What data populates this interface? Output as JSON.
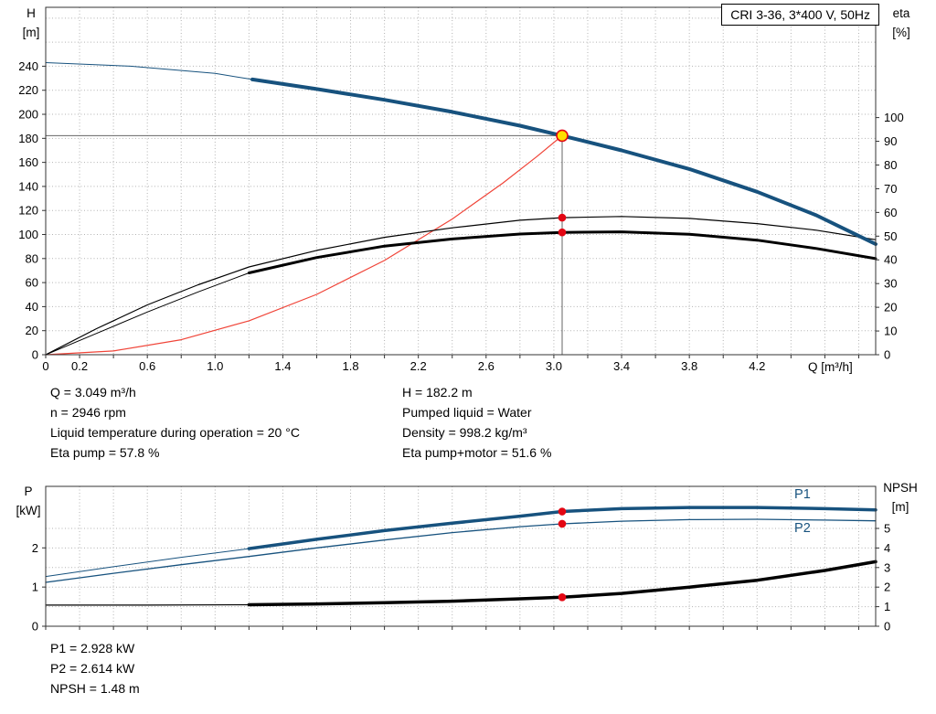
{
  "title_box": "CRI 3-36, 3*400 V, 50Hz",
  "axes_captions": {
    "h_top": "H",
    "h_unit": "[m]",
    "eta_top": "eta",
    "eta_unit": "[%]",
    "q_axis": "Q [m³/h]",
    "p_top": "P",
    "p_unit": "[kW]",
    "npsh_top": "NPSH",
    "npsh_unit": "[m]"
  },
  "info": {
    "q": "Q = 3.049 m³/h",
    "n": "n = 2946 rpm",
    "temperature": "Liquid temperature during operation = 20 °C",
    "eta_pump": "Eta pump = 57.8 %",
    "h": "H = 182.2 m",
    "pumped_liquid": "Pumped liquid = Water",
    "density": "Density = 998.2 kg/m³",
    "eta_pump_motor": "Eta pump+motor = 51.6 %"
  },
  "results": {
    "p1": "P1 = 2.928 kW",
    "p2": "P2 = 2.614 kW",
    "npsh": "NPSH = 1.48 m"
  },
  "colors": {
    "blue": "#17527e",
    "black": "#000000",
    "red_curve": "#f04438",
    "red_dot": "#e30613",
    "duty_fill": "#ffe000",
    "duty_stroke": "#e30613",
    "grid": "#b3b3b3",
    "crosshair": "#666666",
    "axis": "#333333"
  },
  "chart_data": [
    {
      "type": "line",
      "title": "CRI 3-36, 3*400 V, 50Hz",
      "xlabel": "Q [m³/h]",
      "ylabel_left": "H [m]",
      "ylabel_right": "eta [%]",
      "xlim": [
        0,
        4.9
      ],
      "ylim_left": [
        0,
        289
      ],
      "ylim_right": [
        0,
        146.5
      ],
      "xticks": {
        "values": [
          0,
          0.2,
          0.6,
          1.0,
          1.4,
          1.8,
          2.2,
          2.6,
          3.0,
          3.4,
          3.8,
          4.2
        ],
        "labels": [
          "0",
          "0.2",
          "0.6",
          "1.0",
          "1.4",
          "1.8",
          "2.2",
          "2.6",
          "3.0",
          "3.4",
          "3.8",
          "4.2"
        ]
      },
      "xtick_marks": {
        "start": 0,
        "end": 4.8,
        "step": 0.2
      },
      "yticks_left": [
        0,
        20,
        40,
        60,
        80,
        100,
        120,
        140,
        160,
        180,
        200,
        220,
        240
      ],
      "yticks_right": [
        0,
        10,
        20,
        30,
        40,
        50,
        60,
        70,
        80,
        90,
        100
      ],
      "grid_x": {
        "start": 0.2,
        "end": 4.8,
        "step": 0.2
      },
      "grid_y": {
        "axis": "left",
        "values": [
          20,
          40,
          60,
          80,
          100,
          120,
          140,
          160,
          180,
          200,
          220,
          240,
          260,
          280
        ]
      },
      "crosshair": {
        "q": 3.049,
        "v": 182.2,
        "axis": "left"
      },
      "series": [
        {
          "name": "system-curve",
          "axis": "left",
          "color": "red_curve",
          "width": 1.2,
          "points": [
            [
              0,
              0
            ],
            [
              0.4,
              3.1
            ],
            [
              0.8,
              12.5
            ],
            [
              1.2,
              28.2
            ],
            [
              1.6,
              50.2
            ],
            [
              2.0,
              78.4
            ],
            [
              2.4,
              112.9
            ],
            [
              2.7,
              142.9
            ],
            [
              2.9,
              164.9
            ],
            [
              3.049,
              182.2
            ]
          ]
        },
        {
          "name": "eta-pump-motor-curve",
          "axis": "right",
          "color": "black",
          "width": 1,
          "thick_from": 1.2,
          "thick_width": 3,
          "points": [
            [
              0,
              0
            ],
            [
              0.3,
              9
            ],
            [
              0.6,
              18
            ],
            [
              0.9,
              26.5
            ],
            [
              1.2,
              34.5
            ],
            [
              1.6,
              41
            ],
            [
              2.0,
              45.8
            ],
            [
              2.4,
              48.8
            ],
            [
              2.8,
              50.9
            ],
            [
              3.049,
              51.6
            ],
            [
              3.4,
              51.8
            ],
            [
              3.8,
              50.8
            ],
            [
              4.2,
              48.3
            ],
            [
              4.55,
              44.8
            ],
            [
              4.9,
              40.5
            ]
          ]
        },
        {
          "name": "eta-pump-curve",
          "axis": "right",
          "color": "black",
          "width": 1.2,
          "points": [
            [
              0,
              0
            ],
            [
              0.3,
              11
            ],
            [
              0.6,
              21
            ],
            [
              0.9,
              29.5
            ],
            [
              1.2,
              37
            ],
            [
              1.6,
              44
            ],
            [
              2.0,
              49.5
            ],
            [
              2.4,
              53.5
            ],
            [
              2.8,
              56.7
            ],
            [
              3.049,
              57.8
            ],
            [
              3.4,
              58.3
            ],
            [
              3.8,
              57.5
            ],
            [
              4.2,
              55.3
            ],
            [
              4.55,
              52.5
            ],
            [
              4.9,
              48.5
            ]
          ]
        },
        {
          "name": "head-curve",
          "axis": "left",
          "color": "blue",
          "width": 1,
          "thick_from": 1.22,
          "thick_width": 4,
          "points": [
            [
              0,
              243
            ],
            [
              0.5,
              240
            ],
            [
              1.0,
              234
            ],
            [
              1.22,
              229
            ],
            [
              1.6,
              221
            ],
            [
              2.0,
              212
            ],
            [
              2.4,
              202
            ],
            [
              2.8,
              190.5
            ],
            [
              3.049,
              182.2
            ],
            [
              3.4,
              170
            ],
            [
              3.8,
              154.5
            ],
            [
              4.2,
              135.5
            ],
            [
              4.55,
              116
            ],
            [
              4.9,
              92
            ]
          ]
        }
      ],
      "markers": [
        {
          "type": "dot",
          "axis": "right",
          "q": 3.049,
          "v": 57.8
        },
        {
          "type": "dot",
          "axis": "right",
          "q": 3.049,
          "v": 51.6
        },
        {
          "type": "duty",
          "axis": "left",
          "q": 3.049,
          "v": 182.2
        }
      ]
    },
    {
      "type": "line",
      "title": "",
      "xlabel": "",
      "ylabel_left": "P [kW]",
      "ylabel_right": "NPSH [m]",
      "xlim": [
        0,
        4.9
      ],
      "ylim_left": [
        0,
        3.57
      ],
      "ylim_right": [
        0,
        7.15
      ],
      "xtick_marks": {
        "start": 0,
        "end": 4.8,
        "step": 0.2
      },
      "yticks_left": [
        0,
        1,
        2
      ],
      "yticks_right": [
        0,
        1,
        2,
        3,
        4,
        5
      ],
      "grid_x": {
        "start": 0.2,
        "end": 4.8,
        "step": 0.2
      },
      "grid_y": {
        "axis": "right",
        "values": [
          1,
          2,
          3,
          4,
          5
        ]
      },
      "series": [
        {
          "name": "npsh-curve",
          "axis": "right",
          "color": "black",
          "width": 1.2,
          "thick_from": 1.2,
          "thick_width": 3.5,
          "points": [
            [
              0,
              1.08
            ],
            [
              0.6,
              1.08
            ],
            [
              1.2,
              1.1
            ],
            [
              1.6,
              1.14
            ],
            [
              2.0,
              1.2
            ],
            [
              2.4,
              1.28
            ],
            [
              2.8,
              1.4
            ],
            [
              3.049,
              1.48
            ],
            [
              3.4,
              1.68
            ],
            [
              3.8,
              2.0
            ],
            [
              4.2,
              2.35
            ],
            [
              4.6,
              2.85
            ],
            [
              4.9,
              3.3
            ]
          ]
        },
        {
          "name": "p2-curve",
          "axis": "left",
          "color": "blue",
          "width": 1.3,
          "points": [
            [
              0,
              1.12
            ],
            [
              0.4,
              1.35
            ],
            [
              0.8,
              1.57
            ],
            [
              1.2,
              1.78
            ],
            [
              1.6,
              2.0
            ],
            [
              2.0,
              2.2
            ],
            [
              2.4,
              2.39
            ],
            [
              2.8,
              2.54
            ],
            [
              3.049,
              2.614
            ],
            [
              3.4,
              2.68
            ],
            [
              3.8,
              2.72
            ],
            [
              4.2,
              2.73
            ],
            [
              4.6,
              2.71
            ],
            [
              4.9,
              2.69
            ]
          ]
        },
        {
          "name": "p1-curve",
          "axis": "left",
          "color": "blue",
          "width": 1,
          "thick_from": 1.2,
          "thick_width": 3.5,
          "points": [
            [
              0,
              1.27
            ],
            [
              0.4,
              1.52
            ],
            [
              0.8,
              1.76
            ],
            [
              1.2,
              1.98
            ],
            [
              1.6,
              2.22
            ],
            [
              2.0,
              2.44
            ],
            [
              2.4,
              2.63
            ],
            [
              2.8,
              2.81
            ],
            [
              3.049,
              2.928
            ],
            [
              3.4,
              3.0
            ],
            [
              3.8,
              3.03
            ],
            [
              4.2,
              3.03
            ],
            [
              4.6,
              3.0
            ],
            [
              4.9,
              2.97
            ]
          ]
        }
      ],
      "annotations": [
        {
          "text": "P1",
          "q": 4.42,
          "v": 3.27,
          "axis": "left",
          "color": "blue"
        },
        {
          "text": "P2",
          "q": 4.42,
          "v": 2.4,
          "axis": "left",
          "color": "blue"
        }
      ],
      "markers": [
        {
          "type": "dot",
          "axis": "left",
          "q": 3.049,
          "v": 2.928
        },
        {
          "type": "dot",
          "axis": "left",
          "q": 3.049,
          "v": 2.614
        },
        {
          "type": "dot",
          "axis": "right",
          "q": 3.049,
          "v": 1.48
        }
      ]
    }
  ]
}
